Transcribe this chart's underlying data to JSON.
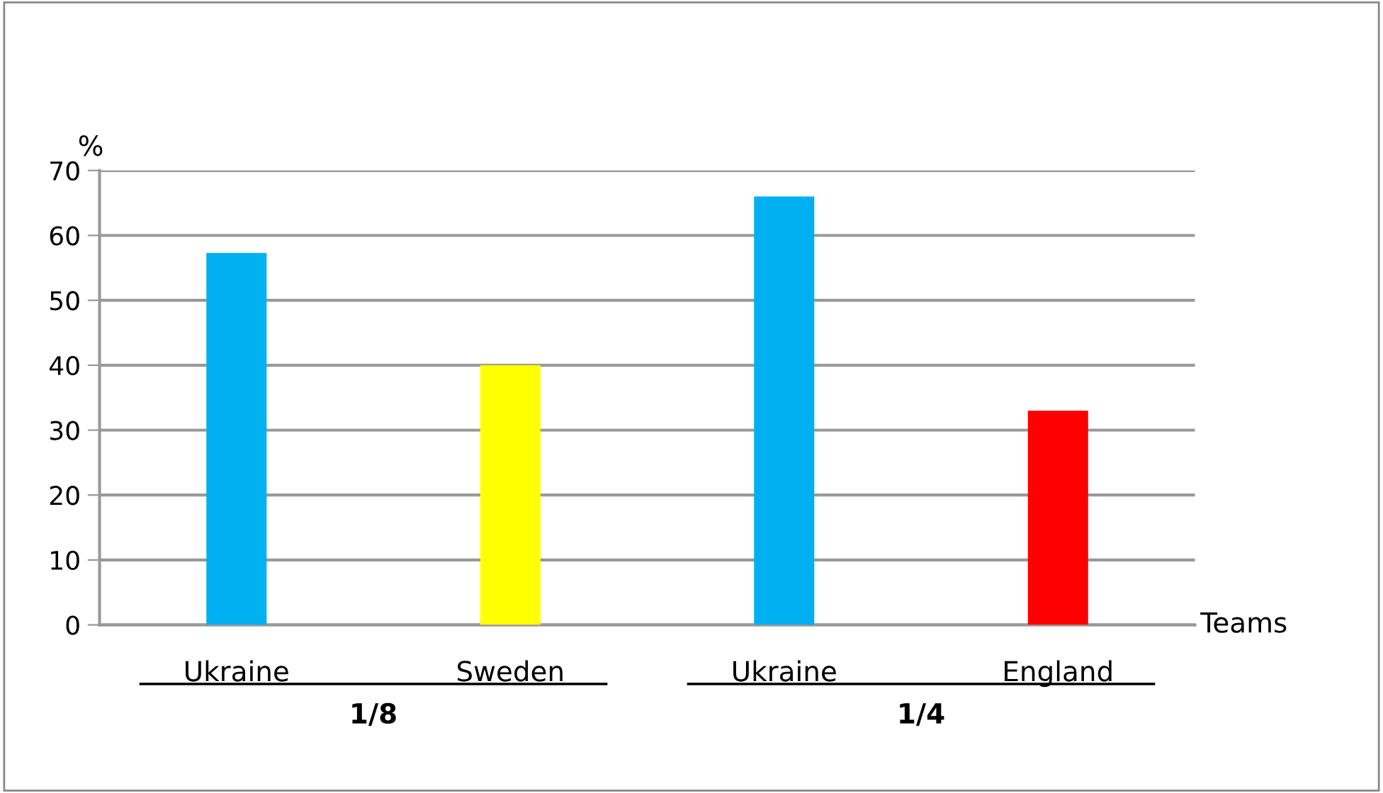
{
  "chart_data": {
    "type": "bar",
    "ylabel": "%",
    "xlabel": "Teams",
    "categories": [
      "Ukraine",
      "Sweden",
      "Ukraine",
      "England"
    ],
    "values": [
      57.3,
      40,
      66,
      33
    ],
    "colors": [
      "#00b0f0",
      "#ffff00",
      "#00b0f0",
      "#ff0000"
    ],
    "ylim": [
      0,
      70
    ],
    "yticks": [
      0,
      10,
      20,
      30,
      40,
      50,
      60,
      70
    ],
    "grid": "y",
    "annotations": [
      "1/8",
      "1/4"
    ]
  }
}
